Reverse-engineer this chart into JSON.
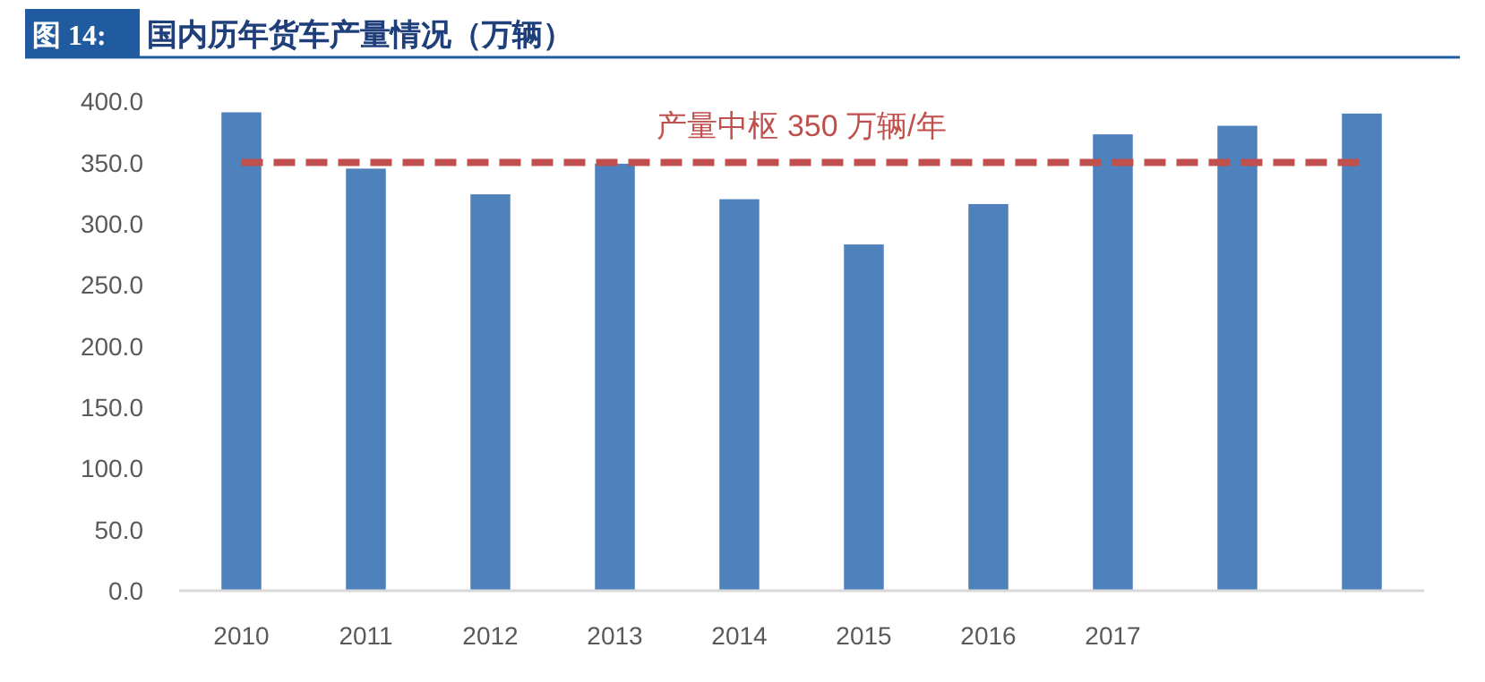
{
  "chart_data": {
    "type": "bar",
    "title": "图 14: 国内历年货车产量情况（万辆）",
    "categories": [
      "2010",
      "2011",
      "2012",
      "2013",
      "2014",
      "2015",
      "2016",
      "2017",
      null,
      null
    ],
    "series": [
      {
        "color": "#4f81bd",
        "values": [
          391,
          345,
          324,
          349,
          320,
          283,
          316,
          373,
          380,
          390
        ]
      }
    ],
    "ylim": [
      0,
      400
    ],
    "yticks": [
      {
        "value": 0,
        "label": "0.0"
      },
      {
        "value": 50,
        "label": "50.0"
      },
      {
        "value": 100,
        "label": "100.0"
      },
      {
        "value": 150,
        "label": "150.0"
      },
      {
        "value": 200,
        "label": "200.0"
      },
      {
        "value": 250,
        "label": "250.0"
      },
      {
        "value": 300,
        "label": "300.0"
      },
      {
        "value": 350,
        "label": "350.0"
      },
      {
        "value": 400,
        "label": "400.0"
      }
    ],
    "grid": false,
    "ref_lines": [
      {
        "axis": "y",
        "value": 350,
        "label": "产量中枢 350 万辆/年",
        "color": "#c0504d",
        "line_style": "dashed"
      }
    ]
  }
}
